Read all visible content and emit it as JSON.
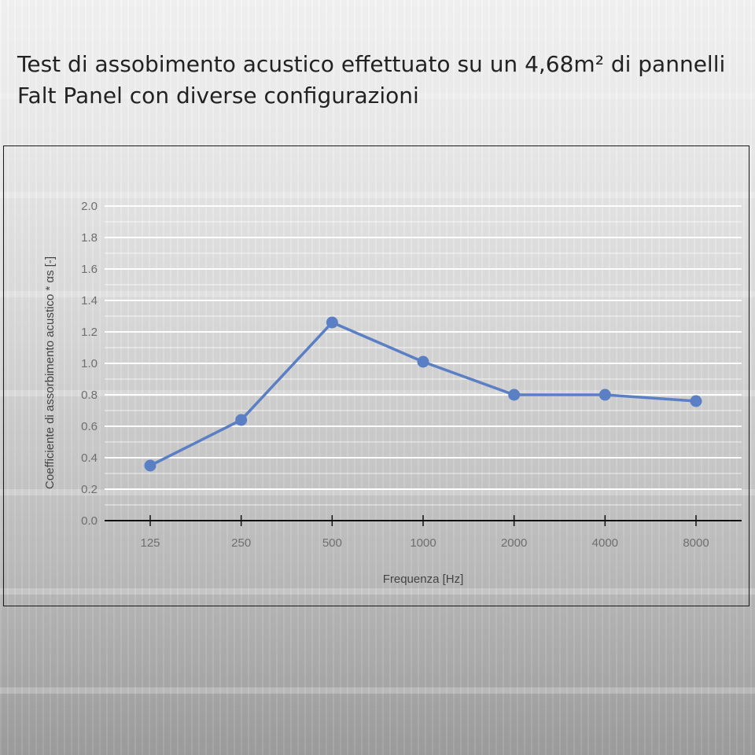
{
  "page": {
    "title": "Test di assobimento acustico effettuato su un 4,68m² di pannelli Falt Panel con diverse configurazioni"
  },
  "chart_data": {
    "type": "line",
    "categories": [
      "125",
      "250",
      "500",
      "1000",
      "2000",
      "4000",
      "8000"
    ],
    "series": [
      {
        "values": [
          0.35,
          0.64,
          1.26,
          1.01,
          0.8,
          0.8,
          0.76
        ],
        "color": "#5b7fc4"
      }
    ],
    "xlabel": "Frequenza [Hz]",
    "ylabel": "Coefficiente di assorbimento acustico * αs [-]",
    "ylim": [
      0.0,
      2.0
    ],
    "yticks": [
      "0.0",
      "0.2",
      "0.4",
      "0.6",
      "0.8",
      "1.0",
      "1.2",
      "1.4",
      "1.6",
      "1.8",
      "2.0"
    ],
    "grid": true,
    "legend": "none"
  }
}
